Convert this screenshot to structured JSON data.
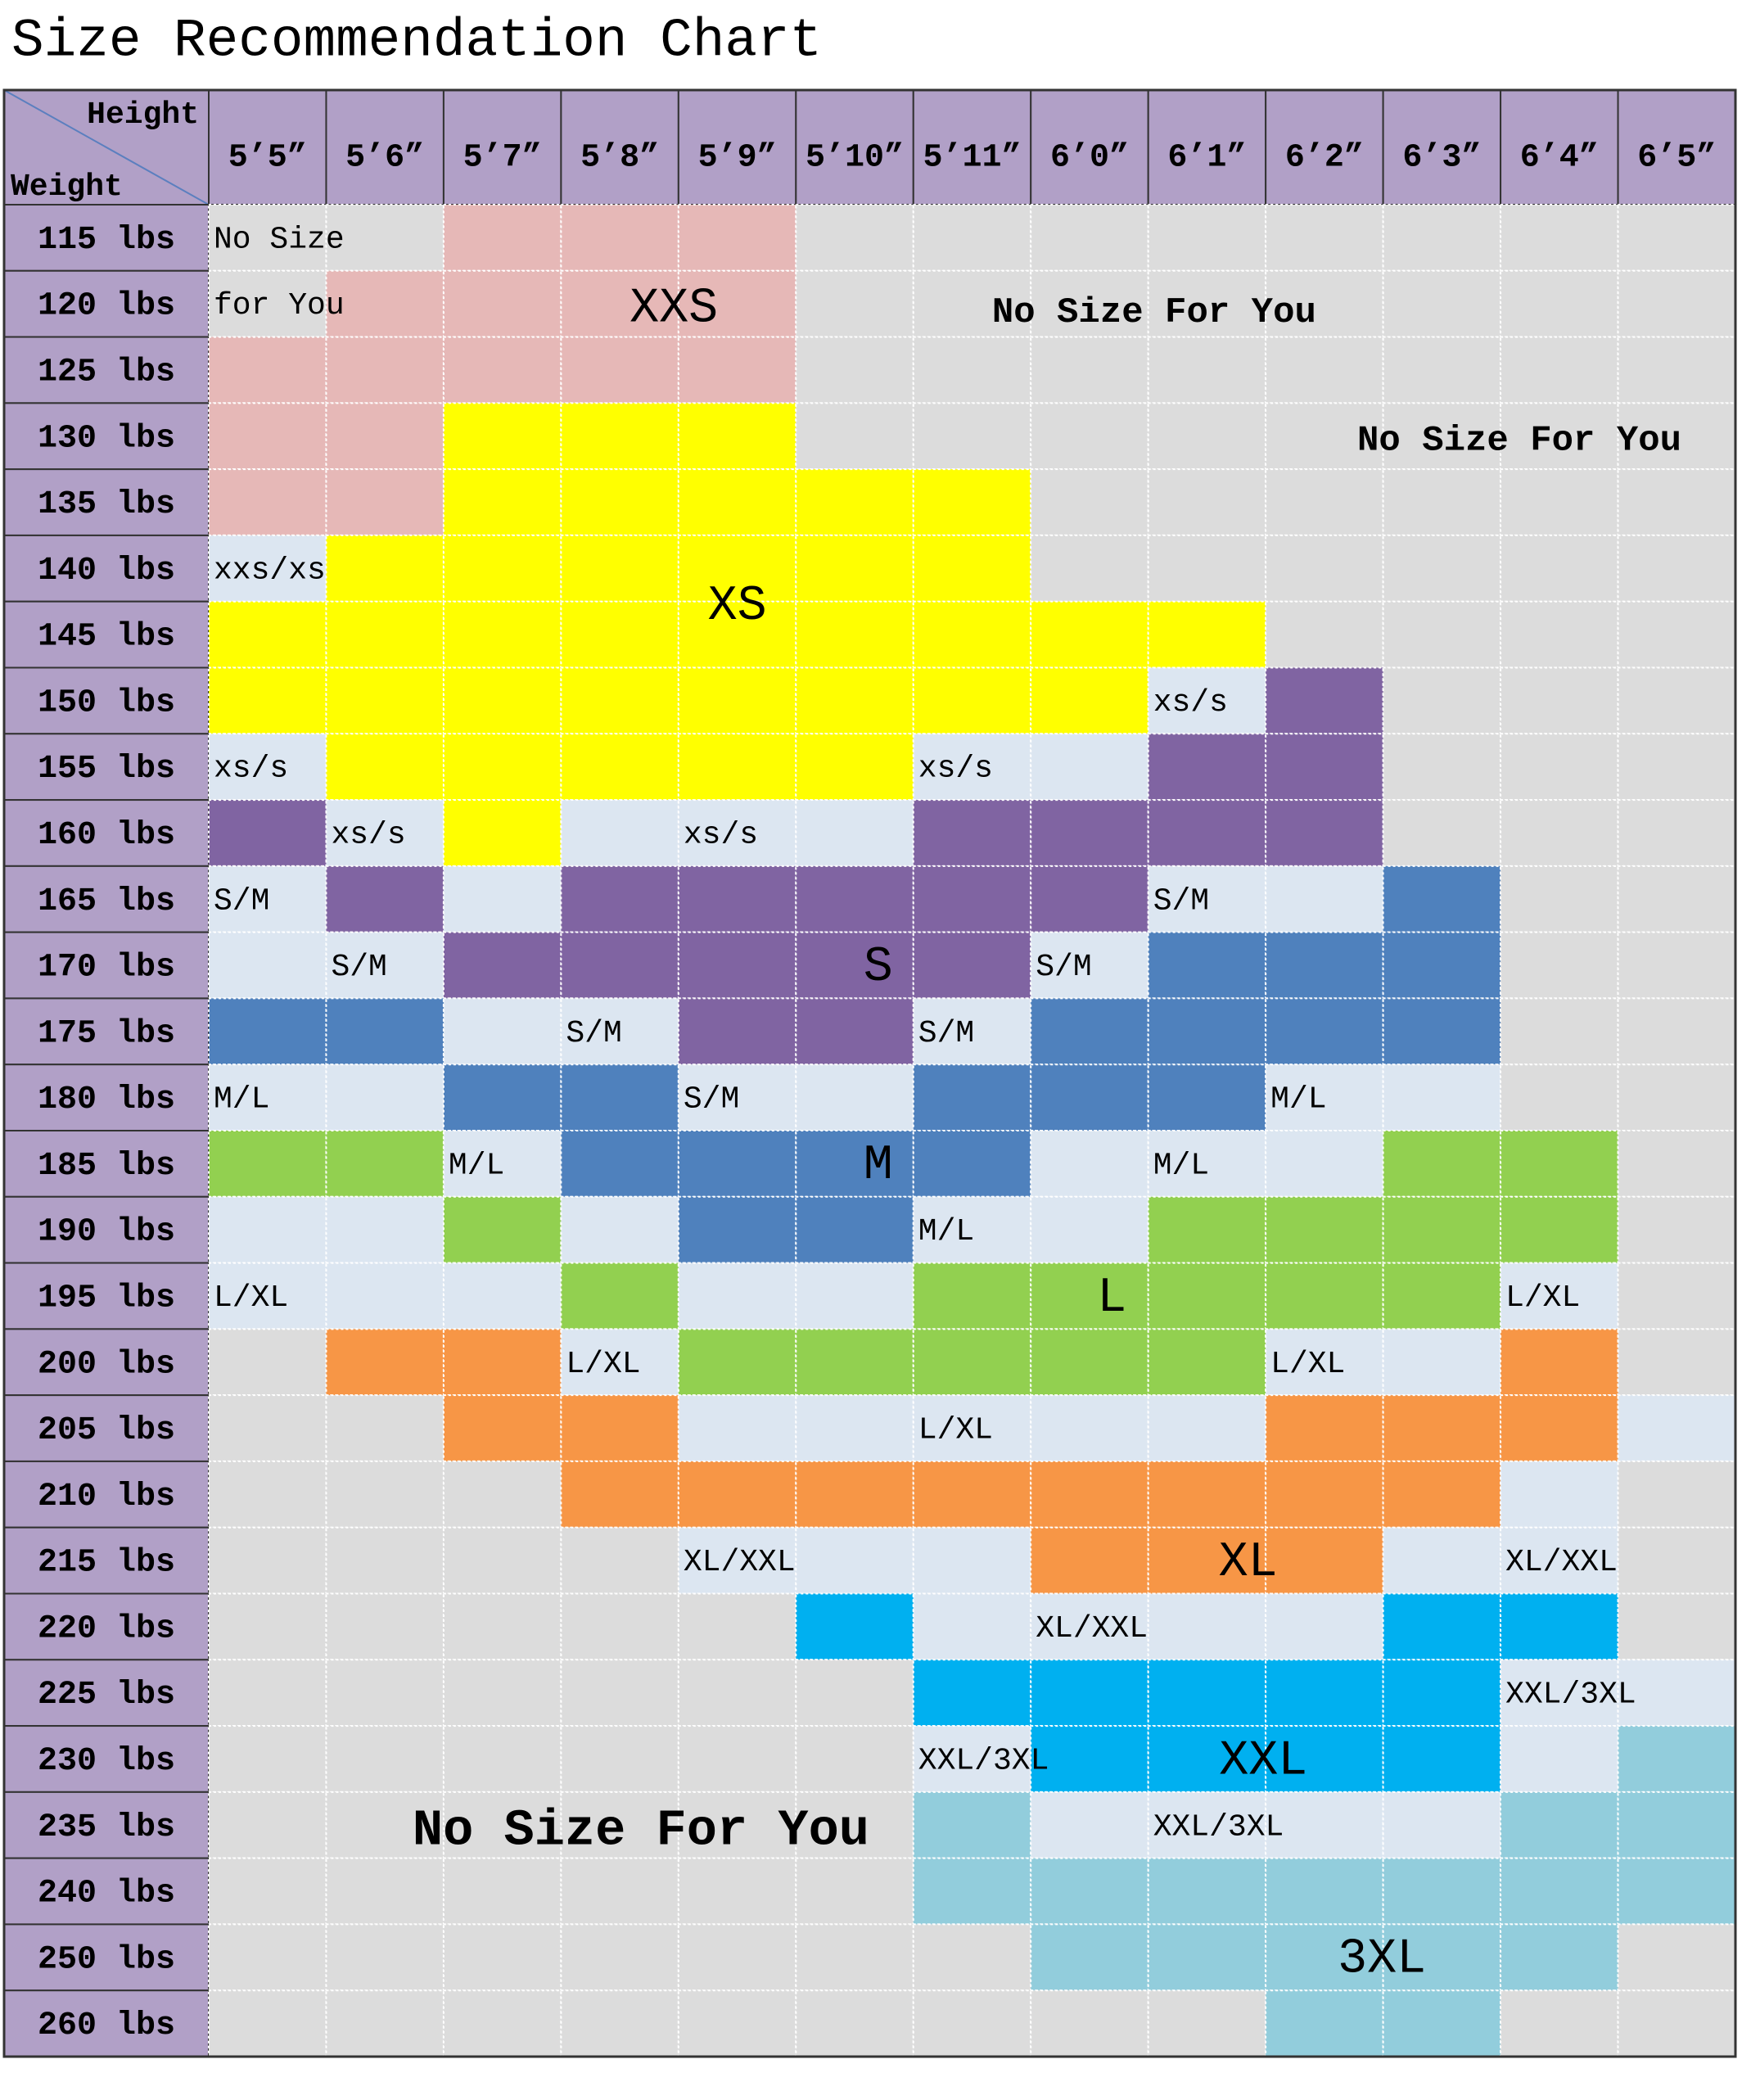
{
  "title": "Size Recommendation Chart",
  "corner": {
    "height": "Height",
    "weight": "Weight"
  },
  "heights": [
    "5’5”",
    "5’6”",
    "5’7”",
    "5’8”",
    "5’9”",
    "5’10”",
    "5’11”",
    "6’0”",
    "6’1”",
    "6’2”",
    "6’3”",
    "6’4”",
    "6’5”"
  ],
  "weights": [
    "115 lbs",
    "120 lbs",
    "125 lbs",
    "130 lbs",
    "135 lbs",
    "140 lbs",
    "145 lbs",
    "150 lbs",
    "155 lbs",
    "160 lbs",
    "165 lbs",
    "170 lbs",
    "175 lbs",
    "180 lbs",
    "185 lbs",
    "190 lbs",
    "195 lbs",
    "200 lbs",
    "205 lbs",
    "210 lbs",
    "215 lbs",
    "220 lbs",
    "225 lbs",
    "230 lbs",
    "235 lbs",
    "240 lbs",
    "250 lbs",
    "260 lbs"
  ],
  "labels": [
    "No Size",
    "for You",
    "XXS",
    "No Size For You",
    "No Size For You",
    "xxs/xs",
    "XS",
    "xs/s",
    "xs/s",
    "xs/s",
    "xs/s",
    "xs/s",
    "S/M",
    "S/M",
    "S/M",
    "S/M",
    "S/M",
    "S/M",
    "S/M",
    "S",
    "M/L",
    "M/L",
    "M/L",
    "M/L",
    "M/L",
    "M",
    "L/XL",
    "L/XL",
    "L/XL",
    "L/XL",
    "L/XL",
    "L",
    "XL/XXL",
    "XL/XXL",
    "XL/XXL",
    "XL",
    "XXL/3XL",
    "XXL/3XL",
    "XXL/3XL",
    "XXL",
    "No Size For You",
    "3XL"
  ]
}
